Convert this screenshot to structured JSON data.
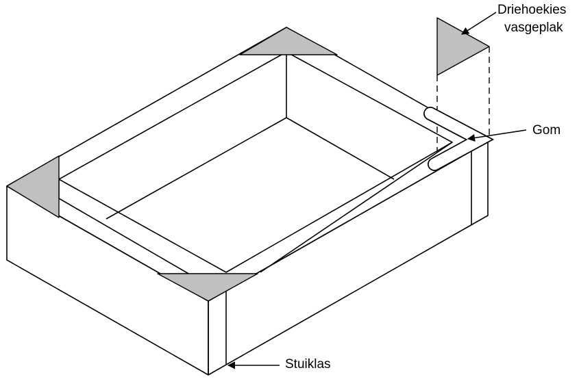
{
  "labels": {
    "triangles_line1": "Driehoekies",
    "triangles_line2": "vasgeplak",
    "gom": "Gom",
    "stuiklas": "Stuiklas"
  },
  "colors": {
    "stroke": "#000000",
    "triangle_fill": "#c0c0c0",
    "background": "#ffffff"
  }
}
